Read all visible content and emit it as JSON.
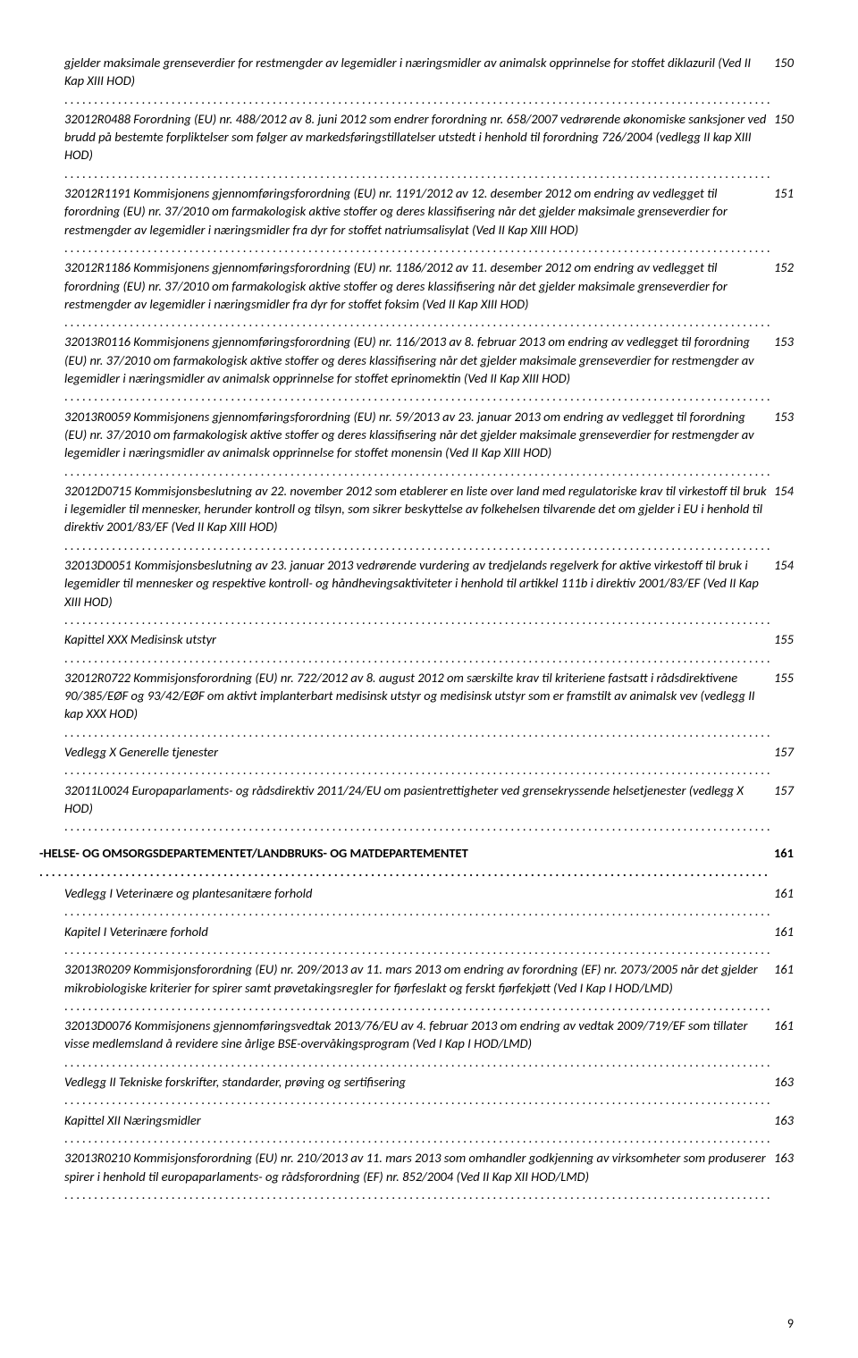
{
  "entries": [
    {
      "type": "italic",
      "text": "gjelder maksimale grenseverdier for restmengder av legemidler i næringsmidler av animalsk opprinnelse for stoffet diklazuril (Ved II Kap XIII HOD)",
      "page": "150"
    },
    {
      "type": "italic",
      "text": "32012R0488 Forordning (EU) nr. 488/2012 av 8. juni 2012 som endrer forordning nr. 658/2007 vedrørende økonomiske sanksjoner ved brudd på bestemte forpliktelser som følger av markedsføringstillatelser utstedt i henhold til forordning 726/2004 (vedlegg II kap XIII HOD)",
      "page": "150"
    },
    {
      "type": "italic",
      "text": "32012R1191 Kommisjonens gjennomføringsforordning (EU) nr. 1191/2012 av 12. desember 2012 om endring av vedlegget til forordning (EU) nr. 37/2010 om farmakologisk aktive stoffer og deres klassifisering når det gjelder maksimale grenseverdier for restmengder av legemidler i næringsmidler fra dyr for stoffet natriumsalisylat (Ved II Kap XIII HOD)",
      "page": "151"
    },
    {
      "type": "italic",
      "text": "32012R1186 Kommisjonens gjennomføringsforordning (EU) nr. 1186/2012 av 11. desember 2012 om endring av vedlegget til forordning (EU) nr. 37/2010 om farmakologisk aktive stoffer og deres klassifisering når det gjelder maksimale grenseverdier for restmengder av legemidler i næringsmidler fra dyr for stoffet foksim (Ved II Kap XIII HOD)",
      "page": "152"
    },
    {
      "type": "italic",
      "text": "32013R0116 Kommisjonens gjennomføringsforordning (EU) nr. 116/2013 av 8. februar 2013 om endring av vedlegget til forordning (EU) nr. 37/2010 om farmakologisk aktive stoffer og deres klassifisering når det gjelder maksimale grenseverdier for restmengder av legemidler i næringsmidler av animalsk opprinnelse for stoffet eprinomektin (Ved II Kap XIII HOD)",
      "page": "153"
    },
    {
      "type": "italic",
      "text": "32013R0059 Kommisjonens gjennomføringsforordning (EU) nr. 59/2013 av 23. januar 2013 om endring av vedlegget til forordning (EU) nr. 37/2010 om farmakologisk aktive stoffer og deres klassifisering når det gjelder maksimale grenseverdier for restmengder av legemidler i næringsmidler av animalsk opprinnelse for stoffet monensin (Ved II Kap XIII HOD)",
      "page": "153"
    },
    {
      "type": "italic",
      "text": "32012D0715 Kommisjonsbeslutning av 22. november 2012 som etablerer en liste over land med regulatoriske krav til virkestoff til bruk i legemidler til mennesker, herunder kontroll og tilsyn, som sikrer beskyttelse av folkehelsen tilvarende det om gjelder i EU i henhold til direktiv 2001/83/EF (Ved II Kap XIII HOD)",
      "page": "154"
    },
    {
      "type": "italic",
      "text": "32013D0051 Kommisjonsbeslutning av 23. januar 2013 vedrørende vurdering av tredjelands regelverk for aktive virkestoff til bruk i legemidler til mennesker og respektive kontroll- og håndhevingsaktiviteter i henhold til artikkel 111b i direktiv 2001/83/EF (Ved II Kap XIII HOD)",
      "page": "154"
    },
    {
      "type": "italic",
      "text": "Kapittel XXX Medisinsk utstyr",
      "page": "155"
    },
    {
      "type": "italic",
      "text": "32012R0722 Kommisjonsforordning (EU) nr. 722/2012 av 8. august 2012 om særskilte krav til kriteriene fastsatt i rådsdirektivene 90/385/EØF og 93/42/EØF om aktivt implanterbart medisinsk utstyr og medisinsk utstyr som er framstilt av animalsk vev (vedlegg II kap XXX HOD)",
      "page": "155"
    },
    {
      "type": "italic",
      "text": "Vedlegg X Generelle tjenester",
      "page": "157"
    },
    {
      "type": "italic",
      "text": "32011L0024 Europaparlaments- og rådsdirektiv 2011/24/EU om pasientrettigheter ved grensekryssende helsetjenester (vedlegg X HOD)",
      "page": "157"
    },
    {
      "type": "section-bold",
      "text": "-HELSE- OG OMSORGSDEPARTEMENTET/LANDBRUKS- OG MATDEPARTEMENTET",
      "page": "161"
    },
    {
      "type": "italic",
      "text": "Vedlegg I Veterinære og plantesanitære forhold",
      "page": "161"
    },
    {
      "type": "italic",
      "text": "Kapitel I Veterinære forhold",
      "page": "161"
    },
    {
      "type": "italic",
      "text": "32013R0209 Kommisjonsforordning (EU) nr. 209/2013 av 11. mars 2013 om endring av forordning (EF) nr. 2073/2005 når det gjelder mikrobiologiske kriterier for spirer samt prøvetakingsregler for fjørfeslakt og ferskt fjørfekjøtt (Ved I Kap I HOD/LMD)",
      "page": "161"
    },
    {
      "type": "italic",
      "text": "32013D0076 Kommisjonens gjennomføringsvedtak 2013/76/EU av 4. februar 2013 om endring av vedtak 2009/719/EF som tillater visse medlemsland å revidere sine årlige BSE-overvåkingsprogram (Ved I Kap I HOD/LMD)",
      "page": "161"
    },
    {
      "type": "italic",
      "text": "Vedlegg II Tekniske forskrifter, standarder, prøving og sertifisering",
      "page": "163"
    },
    {
      "type": "italic",
      "text": "Kapittel XII Næringsmidler",
      "page": "163"
    },
    {
      "type": "italic",
      "text": "32013R0210 Kommisjonsforordning (EU) nr. 210/2013 av 11. mars 2013 som omhandler godkjenning av virksomheter som produserer spirer i henhold til europaparlaments- og rådsforordning (EF) nr. 852/2004 (Ved II Kap XII HOD/LMD)",
      "page": "163"
    }
  ],
  "page_number": "9"
}
